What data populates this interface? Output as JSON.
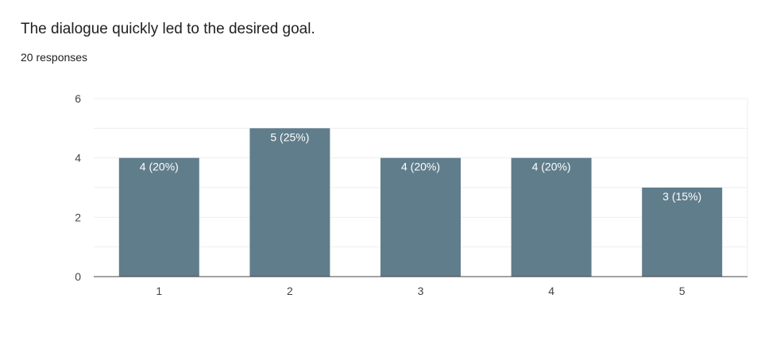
{
  "question": {
    "title": "The dialogue quickly led to the desired goal.",
    "responses": "20 responses"
  },
  "chart_data": {
    "type": "bar",
    "title": "The dialogue quickly led to the desired goal.",
    "xlabel": "",
    "ylabel": "",
    "categories": [
      "1",
      "2",
      "3",
      "4",
      "5"
    ],
    "values": [
      4,
      5,
      4,
      4,
      3
    ],
    "data_labels": [
      "4 (20%)",
      "5 (25%)",
      "4 (20%)",
      "4 (20%)",
      "3 (15%)"
    ],
    "ylim": [
      0,
      6
    ],
    "yticks": [
      0,
      2,
      4,
      6
    ],
    "grid": true,
    "legend": "none",
    "colors": {
      "bar": "#607d8b",
      "grid": "#eeeeee",
      "axis": "#444444",
      "label": "#ffffff"
    }
  }
}
